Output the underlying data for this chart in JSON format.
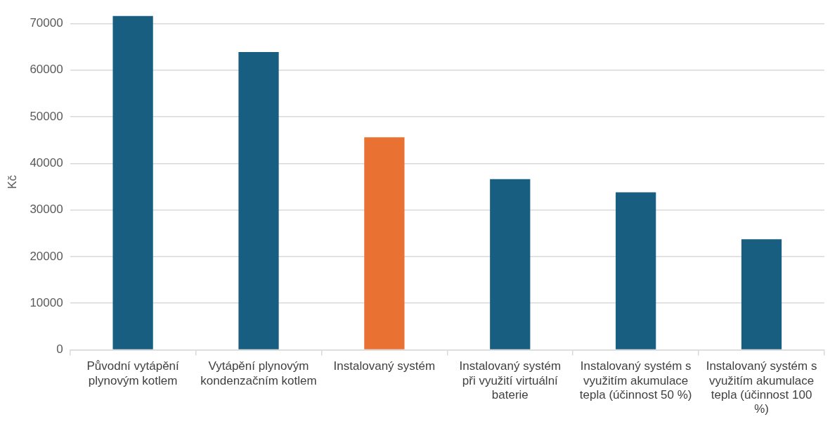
{
  "chart_data": {
    "type": "bar",
    "ylabel": "Kč",
    "categories": [
      "Původní vytápění plynovým kotlem",
      "Vytápění plynovým kondenzačním kotlem",
      "Instalovaný systém",
      "Instalovaný systém při využití virtuální baterie",
      "Instalovaný systém s využitím akumulace tepla (účinnost 50 %)",
      "Instalovaný systém s využitím akumulace tepla (účinnost 100 %)"
    ],
    "values": [
      71600,
      63900,
      45600,
      36600,
      33800,
      23700
    ],
    "colors": [
      "#175e81",
      "#175e81",
      "#e97132",
      "#175e81",
      "#175e81",
      "#175e81"
    ],
    "ylim": [
      0,
      72000
    ],
    "yticks": [
      0,
      10000,
      20000,
      30000,
      40000,
      50000,
      60000,
      70000
    ],
    "grid": "y",
    "legend": false
  }
}
